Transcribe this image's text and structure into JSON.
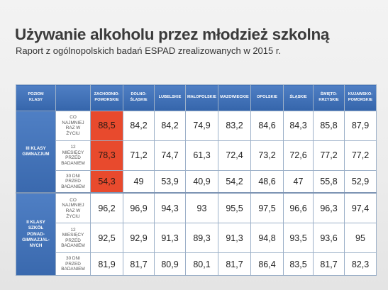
{
  "title": "Używanie alkoholu przez młodzież szkolną",
  "subtitle": "Raport z ogólnopolskich badań ESPAD zrealizowanych w 2015 r.",
  "table": {
    "corner": "POZIOM\nKLASY",
    "regions": [
      "ZACHODNIO-\nPOMORSKIE",
      "DOLNO-\nŚLĄSKIE",
      "LUBELSKIE",
      "MAŁOPOLSKIE",
      "MAZOWIECKIE",
      "OPOLSKIE",
      "ŚLĄSKIE",
      "ŚWIĘTO-\nKRZYSKIE",
      "KUJAWSKO-\nPOMORSKIE"
    ],
    "groups": [
      {
        "label": "III KLASY\nGIMNAZJUM",
        "rows": [
          {
            "period": "CO\nNAJMNIEJ\nRAZ W\nŻYCIU",
            "values": [
              "88,5",
              "84,2",
              "84,2",
              "74,9",
              "83,2",
              "84,6",
              "84,3",
              "85,8",
              "87,9"
            ]
          },
          {
            "period": "12\nMIESIĘCY\nPRZED\nBADANIEM",
            "values": [
              "78,3",
              "71,2",
              "74,7",
              "61,3",
              "72,4",
              "73,2",
              "72,6",
              "77,2",
              "77,2"
            ]
          },
          {
            "period": "30 DNI\nPRZED\nBADANIEM",
            "values": [
              "54,3",
              "49",
              "53,9",
              "40,9",
              "54,2",
              "48,6",
              "47",
              "55,8",
              "52,9"
            ]
          }
        ]
      },
      {
        "label": "II KLASY\nSZKÓŁ\nPONAD-\nGIMNAZJAL-\nNYCH",
        "rows": [
          {
            "period": "CO\nNAJMNIEJ\nRAZ W\nŻYCIU",
            "values": [
              "96,2",
              "96,9",
              "94,3",
              "93",
              "95,5",
              "97,5",
              "96,6",
              "96,3",
              "97,4"
            ]
          },
          {
            "period": "12\nMIESIĘCY\nPRZED\nBADANIEM",
            "values": [
              "92,5",
              "92,9",
              "91,3",
              "89,3",
              "91,3",
              "94,8",
              "93,5",
              "93,6",
              "95"
            ]
          },
          {
            "period": "30 DNI\nPRZED\nBADANIEM",
            "values": [
              "81,9",
              "81,7",
              "80,9",
              "80,1",
              "81,7",
              "86,4",
              "83,5",
              "81,7",
              "82,3"
            ]
          }
        ]
      }
    ],
    "highlight_color": "#e84a2d",
    "header_color": "#3f6fb5"
  }
}
